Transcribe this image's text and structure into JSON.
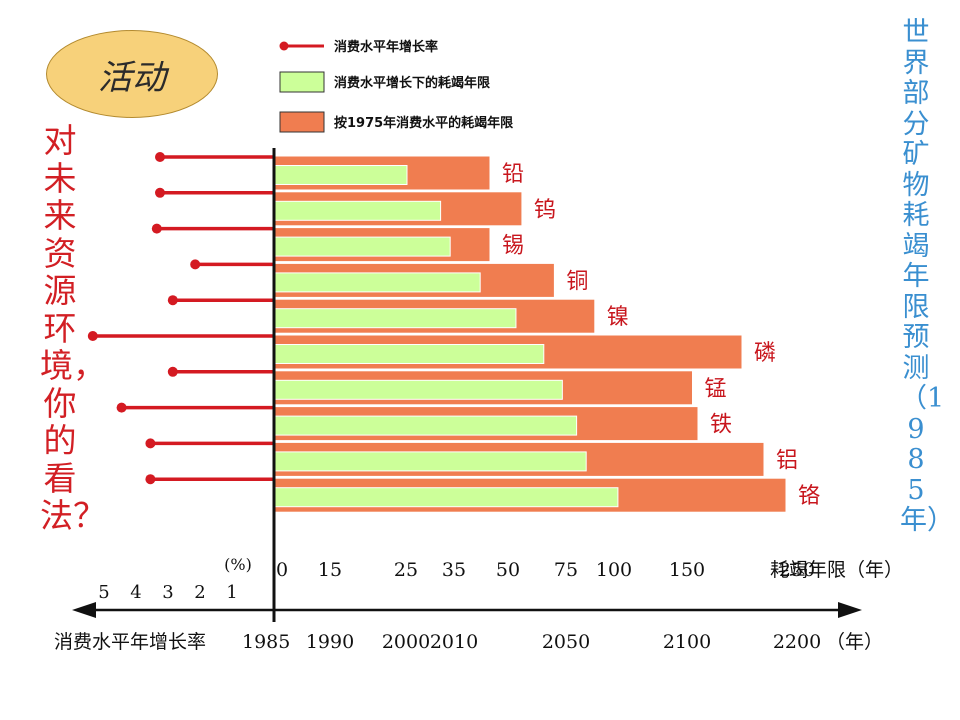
{
  "badge": "活动",
  "left_question": "对未来资源环境，你的看法？",
  "right_title": "世界部分矿物耗竭年限预测（1985年）",
  "colors": {
    "green": "#ccff99",
    "orange": "#f07d50",
    "red_line": "#d41a22",
    "badge_bg": "#f7d17a",
    "left_text": "#d21f24",
    "right_text": "#3a8fd0"
  },
  "chart_data": {
    "type": "bar",
    "legend": [
      {
        "kind": "line",
        "label": "消费水平年增长率"
      },
      {
        "kind": "green_bar",
        "label": "消费水平增长下的耗竭年限"
      },
      {
        "kind": "orange_bar",
        "label": "按1975年消费水平的耗竭年限"
      }
    ],
    "x_ticks": [
      "0",
      "15",
      "25",
      "35",
      "50",
      "75",
      "100",
      "150",
      "250"
    ],
    "x_tick_values": [
      0,
      15,
      25,
      35,
      50,
      75,
      100,
      150,
      250
    ],
    "x_axis_label": "耗竭年限（年）",
    "growth_axis_label": "(%)",
    "growth_ticks": [
      "5",
      "4",
      "3",
      "2",
      "1"
    ],
    "growth_tick_values": [
      5,
      4,
      3,
      2,
      1
    ],
    "year_axis_label": "消费水平年增长率",
    "year_ticks": [
      "1985",
      "1990",
      "2000",
      "2010",
      "2050",
      "2100",
      "2200"
    ],
    "year_tick_values": [
      0,
      5,
      15,
      25,
      65,
      115,
      215
    ],
    "year_unit": "（年）",
    "minerals": [
      {
        "name": "铅",
        "orange": 45,
        "green": 25,
        "growth": 3.5
      },
      {
        "name": "钨",
        "orange": 56,
        "green": 32,
        "growth": 3.5
      },
      {
        "name": "锡",
        "orange": 45,
        "green": 34,
        "growth": 3.6
      },
      {
        "name": "铜",
        "orange": 70,
        "green": 42,
        "growth": 2.4
      },
      {
        "name": "镍",
        "orange": 90,
        "green": 53,
        "growth": 3.1
      },
      {
        "name": "磷",
        "orange": 200,
        "green": 65,
        "growth": 5.6
      },
      {
        "name": "锰",
        "orange": 155,
        "green": 73,
        "growth": 3.1
      },
      {
        "name": "铁",
        "orange": 160,
        "green": 80,
        "growth": 4.7
      },
      {
        "name": "铝",
        "orange": 220,
        "green": 85,
        "growth": 3.8
      },
      {
        "name": "铬",
        "orange": 240,
        "green": 102,
        "growth": 3.8
      }
    ]
  }
}
